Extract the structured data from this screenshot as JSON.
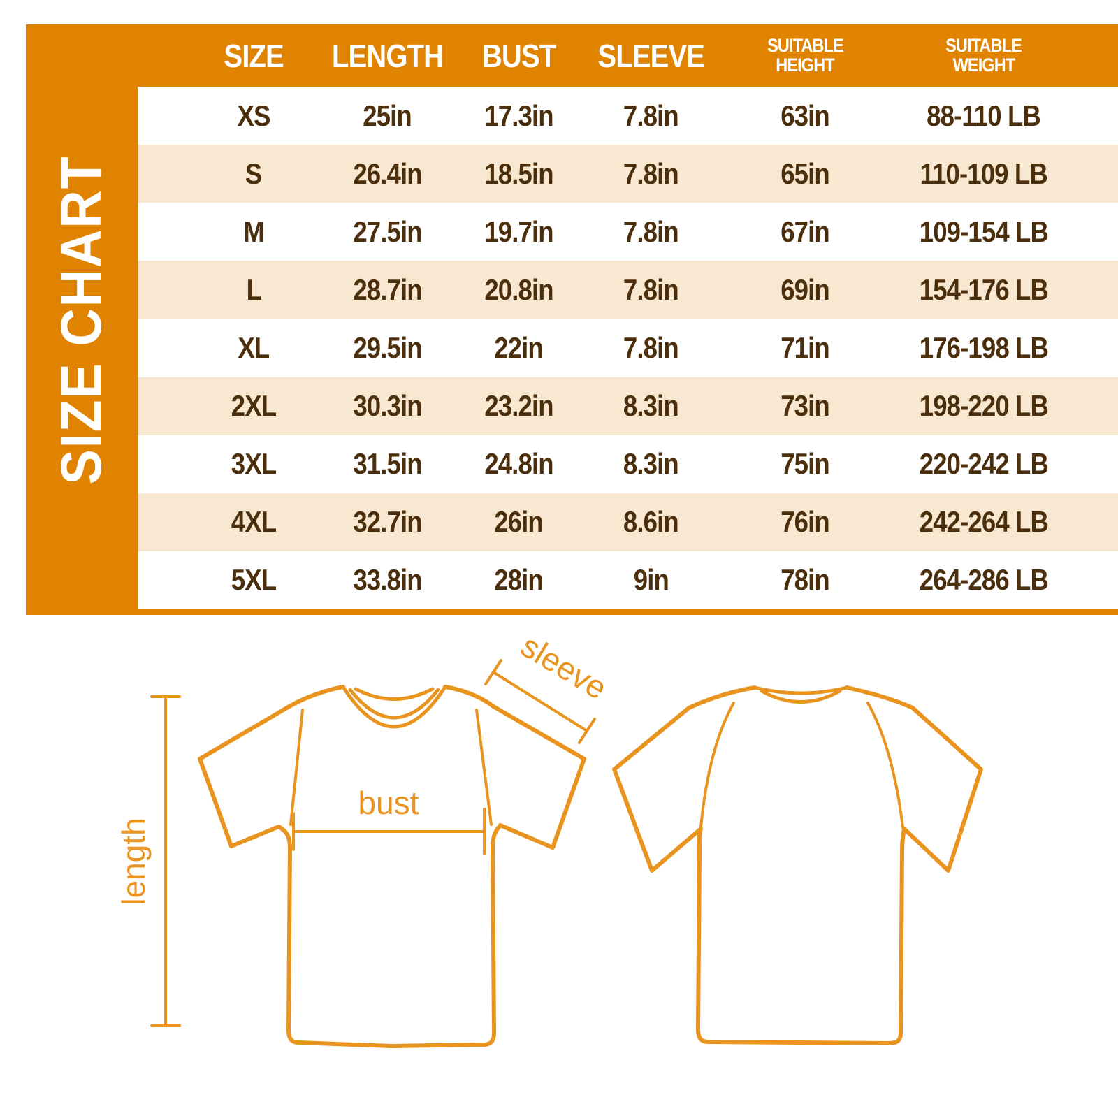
{
  "colors": {
    "panel_orange": "#E08300",
    "row_peach": "#F8E7D1",
    "row_white": "#FFFFFF",
    "value_brown": "#4B2E0C",
    "header_text": "#FFFFFF",
    "diagram_orange": "#E8941F"
  },
  "sidebar": {
    "title": "SIZE CHART"
  },
  "table": {
    "headers": [
      {
        "line1": "SIZE",
        "line2": ""
      },
      {
        "line1": "LENGTH",
        "line2": ""
      },
      {
        "line1": "BUST",
        "line2": ""
      },
      {
        "line1": "SLEEVE",
        "line2": ""
      },
      {
        "line1": "SUITABLE",
        "line2": "HEIGHT"
      },
      {
        "line1": "SUITABLE",
        "line2": "WEIGHT"
      }
    ],
    "rows": [
      {
        "size": "XS",
        "length": "25in",
        "bust": "17.3in",
        "sleeve": "7.8in",
        "height": "63in",
        "weight": "88-110 LB"
      },
      {
        "size": "S",
        "length": "26.4in",
        "bust": "18.5in",
        "sleeve": "7.8in",
        "height": "65in",
        "weight": "110-109 LB"
      },
      {
        "size": "M",
        "length": "27.5in",
        "bust": "19.7in",
        "sleeve": "7.8in",
        "height": "67in",
        "weight": "109-154 LB"
      },
      {
        "size": "L",
        "length": "28.7in",
        "bust": "20.8in",
        "sleeve": "7.8in",
        "height": "69in",
        "weight": "154-176 LB"
      },
      {
        "size": "XL",
        "length": "29.5in",
        "bust": "22in",
        "sleeve": "7.8in",
        "height": "71in",
        "weight": "176-198 LB"
      },
      {
        "size": "2XL",
        "length": "30.3in",
        "bust": "23.2in",
        "sleeve": "8.3in",
        "height": "73in",
        "weight": "198-220 LB"
      },
      {
        "size": "3XL",
        "length": "31.5in",
        "bust": "24.8in",
        "sleeve": "8.3in",
        "height": "75in",
        "weight": "220-242 LB"
      },
      {
        "size": "4XL",
        "length": "32.7in",
        "bust": "26in",
        "sleeve": "8.6in",
        "height": "76in",
        "weight": "242-264 LB"
      },
      {
        "size": "5XL",
        "length": "33.8in",
        "bust": "28in",
        "sleeve": "9in",
        "height": "78in",
        "weight": "264-286 LB"
      }
    ]
  },
  "diagram": {
    "labels": {
      "length": "length",
      "bust": "bust",
      "sleeve": "sleeve"
    }
  }
}
